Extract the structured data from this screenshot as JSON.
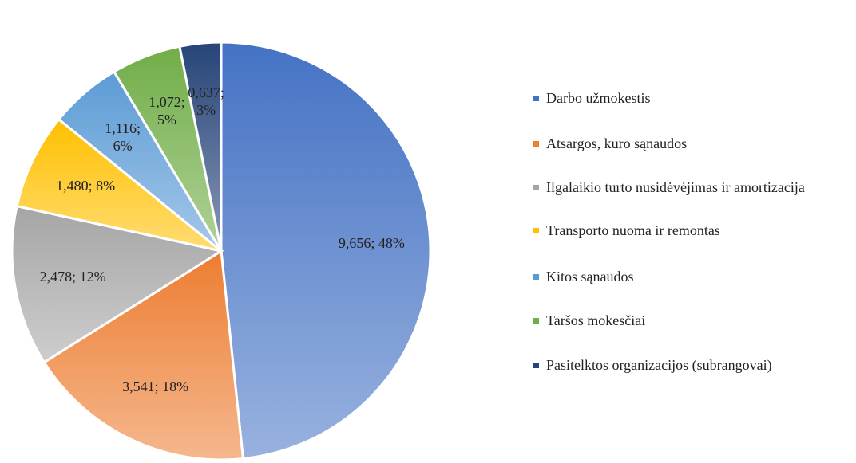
{
  "chart_data": {
    "type": "pie",
    "categories": [
      "Darbo užmokestis",
      "Atsargos, kuro sąnaudos",
      "Ilgalaikio turto nusidėvėjimas ir amortizacija",
      "Transporto nuoma ir remontas",
      "Kitos sąnaudos",
      "Taršos mokesčiai",
      "Pasitelktos organizacijos (subrangovai)"
    ],
    "values": [
      9.656,
      3.541,
      2.478,
      1.48,
      1.116,
      1.072,
      0.637
    ],
    "value_labels": [
      "9,656; 48%",
      "3,541; 18%",
      "2,478; 12%",
      "1,480; 8%",
      "1,116; 6%",
      "1,072; 5%",
      "0,637; 3%"
    ],
    "colors": [
      "#4472c4",
      "#ed7d31",
      "#a5a5a5",
      "#ffc000",
      "#5b9bd5",
      "#70ad47",
      "#264478"
    ],
    "legend": "right"
  }
}
